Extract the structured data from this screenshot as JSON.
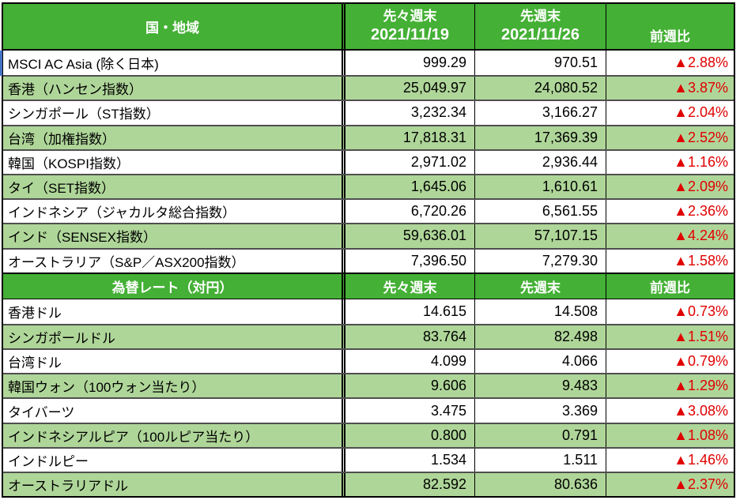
{
  "colors": {
    "header_green": "#44b035",
    "row_green": "#afd699",
    "change_red": "#e00000",
    "grid_dark": "#4f4f4f",
    "selection_blue": "#4472c4"
  },
  "indices": {
    "header": {
      "col1": "国・地域",
      "col2_line1": "先々週末",
      "col2_line2": "2021/11/19",
      "col3_line1": "先週末",
      "col3_line2": "2021/11/26",
      "col4": "前週比"
    },
    "rows": [
      {
        "name": "MSCI AC Asia (除く日本)",
        "prev2": "999.29",
        "prev1": "970.51",
        "change": "▲2.88%"
      },
      {
        "name": "香港（ハンセン指数）",
        "prev2": "25,049.97",
        "prev1": "24,080.52",
        "change": "▲3.87%"
      },
      {
        "name": "シンガポール（ST指数）",
        "prev2": "3,232.34",
        "prev1": "3,166.27",
        "change": "▲2.04%"
      },
      {
        "name": "台湾（加権指数）",
        "prev2": "17,818.31",
        "prev1": "17,369.39",
        "change": "▲2.52%"
      },
      {
        "name": "韓国（KOSPI指数）",
        "prev2": "2,971.02",
        "prev1": "2,936.44",
        "change": "▲1.16%"
      },
      {
        "name": "タイ（SET指数）",
        "prev2": "1,645.06",
        "prev1": "1,610.61",
        "change": "▲2.09%"
      },
      {
        "name": "インドネシア（ジャカルタ総合指数）",
        "prev2": "6,720.26",
        "prev1": "6,561.55",
        "change": "▲2.36%"
      },
      {
        "name": "インド（SENSEX指数）",
        "prev2": "59,636.01",
        "prev1": "57,107.15",
        "change": "▲4.24%"
      },
      {
        "name": "オーストラリア（S&P／ASX200指数）",
        "prev2": "7,396.50",
        "prev1": "7,279.30",
        "change": "▲1.58%"
      }
    ]
  },
  "fx": {
    "header": {
      "col1": "為替レート（対円）",
      "col2": "先々週末",
      "col3": "先週末",
      "col4": "前週比"
    },
    "rows": [
      {
        "name": "香港ドル",
        "prev2": "14.615",
        "prev1": "14.508",
        "change": "▲0.73%"
      },
      {
        "name": "シンガポールドル",
        "prev2": "83.764",
        "prev1": "82.498",
        "change": "▲1.51%"
      },
      {
        "name": "台湾ドル",
        "prev2": "4.099",
        "prev1": "4.066",
        "change": "▲0.79%"
      },
      {
        "name": "韓国ウォン（100ウォン当たり）",
        "prev2": "9.606",
        "prev1": "9.483",
        "change": "▲1.29%"
      },
      {
        "name": "タイバーツ",
        "prev2": "3.475",
        "prev1": "3.369",
        "change": "▲3.08%"
      },
      {
        "name": "インドネシアルピア（100ルピア当たり）",
        "prev2": "0.800",
        "prev1": "0.791",
        "change": "▲1.08%"
      },
      {
        "name": "インドルピー",
        "prev2": "1.534",
        "prev1": "1.511",
        "change": "▲1.46%"
      },
      {
        "name": "オーストラリアドル",
        "prev2": "82.592",
        "prev1": "80.636",
        "change": "▲2.37%"
      }
    ]
  }
}
